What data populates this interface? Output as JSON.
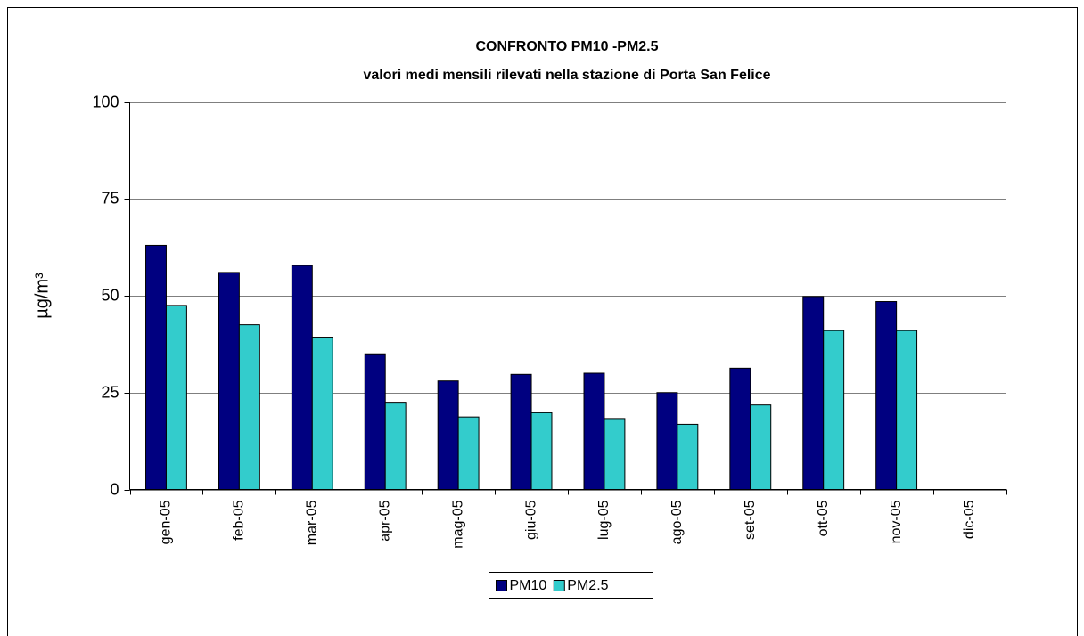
{
  "chart_data": {
    "type": "bar",
    "title": "CONFRONTO PM10 -PM2.5",
    "subtitle": "valori medi mensili rilevati nella stazione di Porta San Felice",
    "y_label": "µg/m³",
    "categories": [
      "gen-05",
      "feb-05",
      "mar-05",
      "apr-05",
      "mag-05",
      "giu-05",
      "lug-05",
      "ago-05",
      "set-05",
      "ott-05",
      "nov-05",
      "dic-05"
    ],
    "series": [
      {
        "name": "PM10",
        "color": "#000080",
        "values": [
          63,
          56,
          57.8,
          35,
          28,
          29.7,
          30,
          25,
          31.3,
          49.8,
          48.5,
          null
        ]
      },
      {
        "name": "PM2.5",
        "color": "#33cccc",
        "values": [
          47.5,
          42.5,
          39.3,
          22.5,
          18.7,
          19.8,
          18.3,
          16.8,
          21.8,
          41,
          41,
          null
        ]
      }
    ],
    "ylim": [
      0,
      100
    ],
    "yticks": [
      0,
      25,
      50,
      75,
      100
    ],
    "grid": true,
    "legend": "bottom"
  }
}
